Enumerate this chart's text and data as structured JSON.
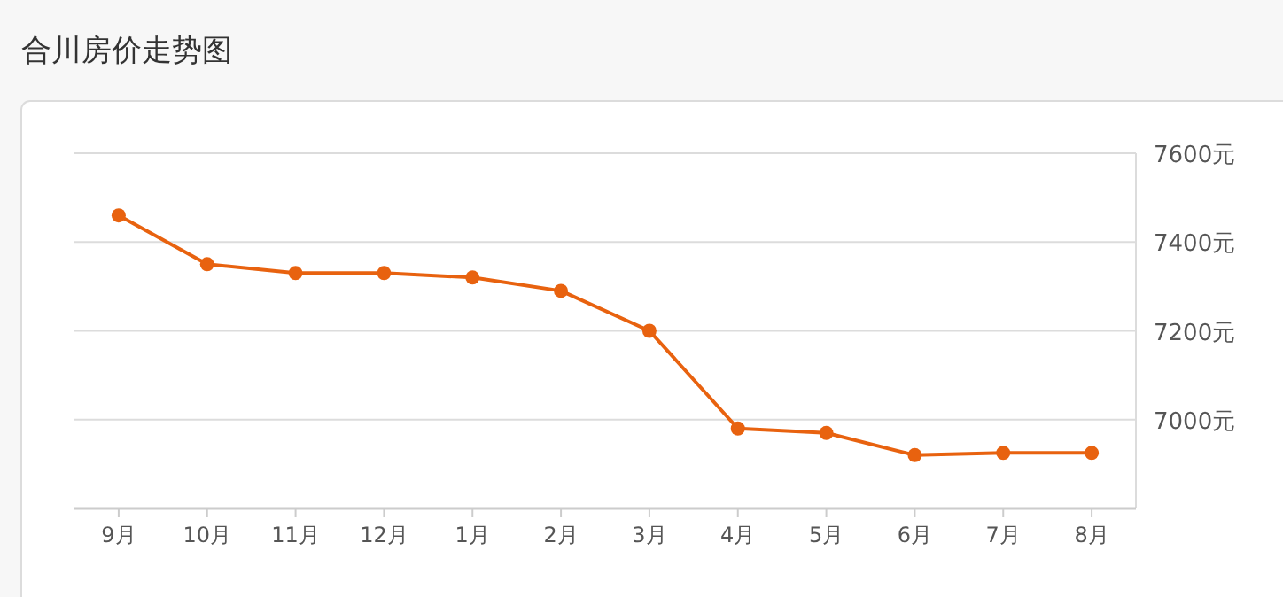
{
  "chart_data": {
    "type": "line",
    "title": "合川房价走势图",
    "categories": [
      "9月",
      "10月",
      "11月",
      "12月",
      "1月",
      "2月",
      "3月",
      "4月",
      "5月",
      "6月",
      "7月",
      "8月"
    ],
    "series": [
      {
        "color": "#e8620f",
        "values": [
          7460,
          7350,
          7330,
          7330,
          7320,
          7290,
          7200,
          6980,
          6970,
          6920,
          6925,
          6925
        ]
      }
    ],
    "ylim": [
      6800,
      7600
    ],
    "yticks": [
      {
        "value": 6800,
        "label": null
      },
      {
        "value": 7000,
        "label": "7000元"
      },
      {
        "value": 7200,
        "label": "7200元"
      },
      {
        "value": 7400,
        "label": "7400元"
      },
      {
        "value": 7600,
        "label": "7600元"
      }
    ],
    "grid": "y",
    "marker": "circle"
  }
}
